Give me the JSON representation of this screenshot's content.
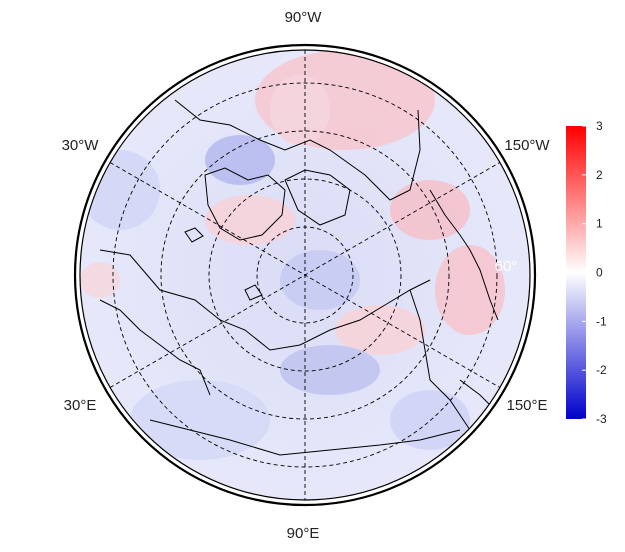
{
  "map": {
    "projection": "polar stereographic (north pole)",
    "fill_colormap": [
      "#0000cc",
      "#ffffff",
      "#ff0000"
    ],
    "coast_color": "#000000",
    "graticule_style": "dashed",
    "longitude_labels": {
      "top": "90°W",
      "upper_left": "30°W",
      "upper_right": "150°W",
      "lower_left": "30°E",
      "lower_right": "150°E",
      "bottom": "90°E",
      "inner": "60°"
    }
  },
  "colorbar": {
    "min": -3,
    "max": 3,
    "ticks": [
      "3",
      "2",
      "1",
      "0",
      "-1",
      "-2",
      "-3"
    ]
  }
}
